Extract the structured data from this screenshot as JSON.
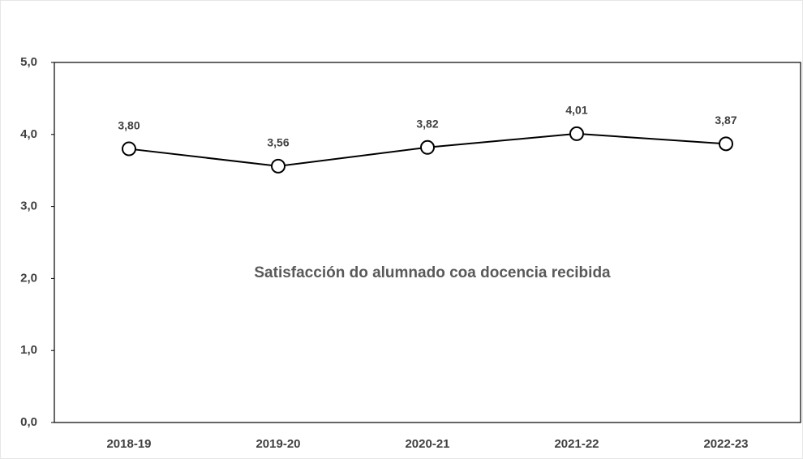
{
  "chart_data": {
    "type": "line",
    "title": "Satisfacción do alumnado coa docencia recibida",
    "categories": [
      "2018-19",
      "2019-20",
      "2020-21",
      "2021-22",
      "2022-23"
    ],
    "values": [
      3.8,
      3.56,
      3.82,
      4.01,
      3.87
    ],
    "value_labels": [
      "3,80",
      "3,56",
      "3,82",
      "4,01",
      "3,87"
    ],
    "color": "#000000",
    "ylim": [
      0,
      5
    ],
    "yticks": [
      {
        "value": 0,
        "label": "0,0"
      },
      {
        "value": 1,
        "label": "1,0"
      },
      {
        "value": 2,
        "label": "2,0"
      },
      {
        "value": 3,
        "label": "3,0"
      },
      {
        "value": 4,
        "label": "4,0"
      },
      {
        "value": 5,
        "label": "5,0"
      }
    ],
    "grid": false
  }
}
